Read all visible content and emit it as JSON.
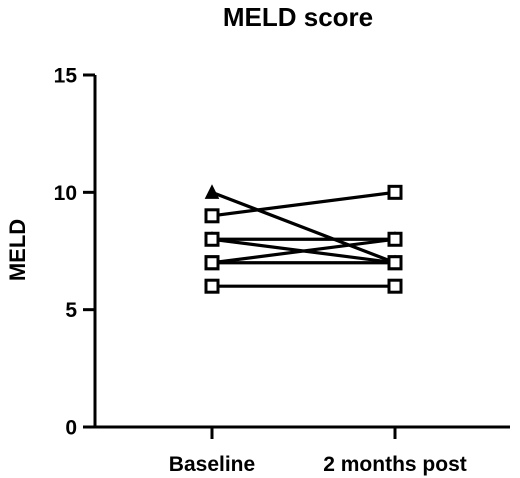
{
  "chart_data": {
    "type": "line",
    "title": "MELD score",
    "xlabel": "",
    "ylabel": "MELD",
    "categories": [
      "Baseline",
      "2 months post"
    ],
    "ylim": [
      0,
      15
    ],
    "yticks": [
      0,
      5,
      10,
      15
    ],
    "grid": false,
    "series": [
      {
        "marker": "triangle",
        "values": [
          10,
          7
        ]
      },
      {
        "marker": "triangle",
        "values": [
          8,
          8
        ]
      },
      {
        "marker": "square",
        "values": [
          9,
          10
        ]
      },
      {
        "marker": "square",
        "values": [
          8,
          7
        ]
      },
      {
        "marker": "square",
        "values": [
          7,
          8
        ]
      },
      {
        "marker": "square",
        "values": [
          7,
          7
        ]
      },
      {
        "marker": "square",
        "values": [
          6,
          6
        ]
      }
    ]
  }
}
